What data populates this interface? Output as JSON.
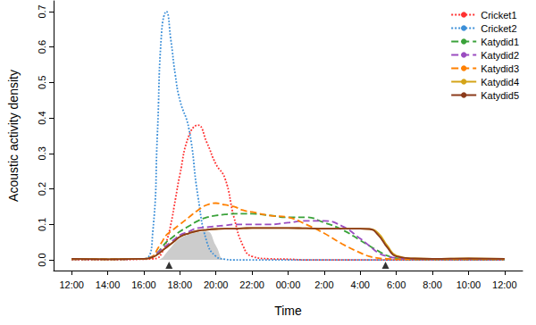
{
  "chart_data": {
    "type": "line",
    "x_label": "Time",
    "y_label": "Acoustic activity density",
    "x": [
      12,
      14,
      16,
      16.5,
      16.75,
      17,
      17.25,
      17.5,
      17.75,
      18,
      18.5,
      19,
      19.5,
      20,
      20.5,
      21,
      21.5,
      22,
      23,
      24,
      25,
      26,
      27,
      28,
      28.5,
      29,
      29.5,
      30,
      31,
      32,
      34,
      36
    ],
    "xlim": [
      11,
      37
    ],
    "xticks": [
      {
        "value": 12,
        "label": "12:00"
      },
      {
        "value": 14,
        "label": "14:00"
      },
      {
        "value": 16,
        "label": "16:00"
      },
      {
        "value": 18,
        "label": "18:00"
      },
      {
        "value": 20,
        "label": "20:00"
      },
      {
        "value": 22,
        "label": "22:00"
      },
      {
        "value": 24,
        "label": "00:00"
      },
      {
        "value": 26,
        "label": "2:00"
      },
      {
        "value": 28,
        "label": "4:00"
      },
      {
        "value": 30,
        "label": "6:00"
      },
      {
        "value": 32,
        "label": "8:00"
      },
      {
        "value": 34,
        "label": "10:00"
      },
      {
        "value": 36,
        "label": "12:00"
      }
    ],
    "ylim": [
      -0.03,
      0.73
    ],
    "yticks": [
      {
        "value": 0,
        "label": "0.0"
      },
      {
        "value": 0.1,
        "label": "0.1"
      },
      {
        "value": 0.2,
        "label": "0.2"
      },
      {
        "value": 0.3,
        "label": "0.3"
      },
      {
        "value": 0.4,
        "label": "0.4"
      },
      {
        "value": 0.5,
        "label": "0.5"
      },
      {
        "value": 0.6,
        "label": "0.6"
      },
      {
        "value": 0.7,
        "label": "0.7"
      }
    ],
    "legend": "top-right",
    "grid": false,
    "series": [
      {
        "type": "area",
        "color": "#cccccc",
        "values": [
          0,
          0,
          0,
          0,
          0,
          0.005,
          0.02,
          0.035,
          0.05,
          0.06,
          0.072,
          0.078,
          0.08,
          0.04,
          0,
          0,
          0,
          0,
          0,
          0,
          0,
          0,
          0,
          0,
          0,
          0,
          0,
          0,
          0,
          0,
          0,
          0
        ]
      },
      {
        "name": "Cricket1",
        "color": "#ff3030",
        "line_style": "dotted",
        "values": [
          0,
          0,
          0.002,
          0.003,
          0.005,
          0.02,
          0.05,
          0.1,
          0.17,
          0.24,
          0.35,
          0.38,
          0.33,
          0.27,
          0.23,
          0.12,
          0.04,
          0.01,
          0.003,
          0.002,
          0,
          0,
          0,
          0,
          0,
          0,
          0,
          0,
          0,
          0,
          0,
          0
        ]
      },
      {
        "name": "Cricket2",
        "color": "#3c8fd8",
        "line_style": "dotted",
        "values": [
          0.002,
          0.002,
          0.003,
          0.08,
          0.35,
          0.65,
          0.7,
          0.62,
          0.52,
          0.45,
          0.37,
          0.18,
          0.05,
          0.01,
          0.002,
          0,
          0,
          0,
          0,
          0,
          0,
          0,
          0,
          0,
          0,
          0,
          0,
          0,
          0,
          0,
          0,
          0
        ]
      },
      {
        "name": "Katydid1",
        "color": "#3aa23a",
        "line_style": "dashed",
        "values": [
          0.002,
          0.002,
          0.003,
          0.01,
          0.02,
          0.035,
          0.05,
          0.06,
          0.07,
          0.08,
          0.095,
          0.11,
          0.12,
          0.125,
          0.128,
          0.13,
          0.13,
          0.13,
          0.125,
          0.12,
          0.12,
          0.105,
          0.085,
          0.055,
          0.04,
          0.025,
          0.012,
          0.005,
          0.002,
          0.002,
          0.002,
          0.002
        ]
      },
      {
        "name": "Katydid2",
        "color": "#9a4cc0",
        "line_style": "dashed",
        "values": [
          0.002,
          0.002,
          0.003,
          0.01,
          0.02,
          0.03,
          0.04,
          0.05,
          0.06,
          0.07,
          0.08,
          0.09,
          0.092,
          0.095,
          0.097,
          0.1,
          0.1,
          0.1,
          0.1,
          0.105,
          0.11,
          0.11,
          0.095,
          0.06,
          0.04,
          0.02,
          0.01,
          0.005,
          0.002,
          0.002,
          0.002,
          0.002
        ]
      },
      {
        "name": "Katydid3",
        "color": "#ff8000",
        "line_style": "dashed",
        "values": [
          0.002,
          0.002,
          0.003,
          0.01,
          0.03,
          0.05,
          0.07,
          0.08,
          0.09,
          0.1,
          0.12,
          0.14,
          0.155,
          0.16,
          0.155,
          0.15,
          0.14,
          0.135,
          0.125,
          0.12,
          0.1,
          0.075,
          0.045,
          0.02,
          0.01,
          0.005,
          0.003,
          0.002,
          0.002,
          0.002,
          0.002,
          0.002
        ]
      },
      {
        "name": "Katydid4",
        "color": "#d4a418",
        "line_style": "solid",
        "values": [
          0.003,
          0.002,
          0.003,
          0.008,
          0.015,
          0.025,
          0.035,
          0.045,
          0.055,
          0.065,
          0.075,
          0.082,
          0.085,
          0.087,
          0.088,
          0.088,
          0.089,
          0.09,
          0.09,
          0.09,
          0.089,
          0.088,
          0.088,
          0.088,
          0.087,
          0.075,
          0.04,
          0.012,
          0.004,
          0.003,
          0.004,
          0.003
        ]
      },
      {
        "name": "Katydid5",
        "color": "#8b3a1a",
        "line_style": "solid",
        "values": [
          0.003,
          0.002,
          0.003,
          0.008,
          0.015,
          0.025,
          0.035,
          0.045,
          0.055,
          0.065,
          0.075,
          0.082,
          0.085,
          0.087,
          0.088,
          0.088,
          0.089,
          0.09,
          0.09,
          0.09,
          0.089,
          0.088,
          0.088,
          0.088,
          0.087,
          0.07,
          0.035,
          0.01,
          0.004,
          0.003,
          0.004,
          0.003
        ]
      },
      {
        "type": "scatter",
        "color": "#000000",
        "marker": "triangle",
        "x": [
          17.4,
          29.4
        ],
        "values": [
          -0.015,
          -0.015
        ]
      }
    ]
  }
}
